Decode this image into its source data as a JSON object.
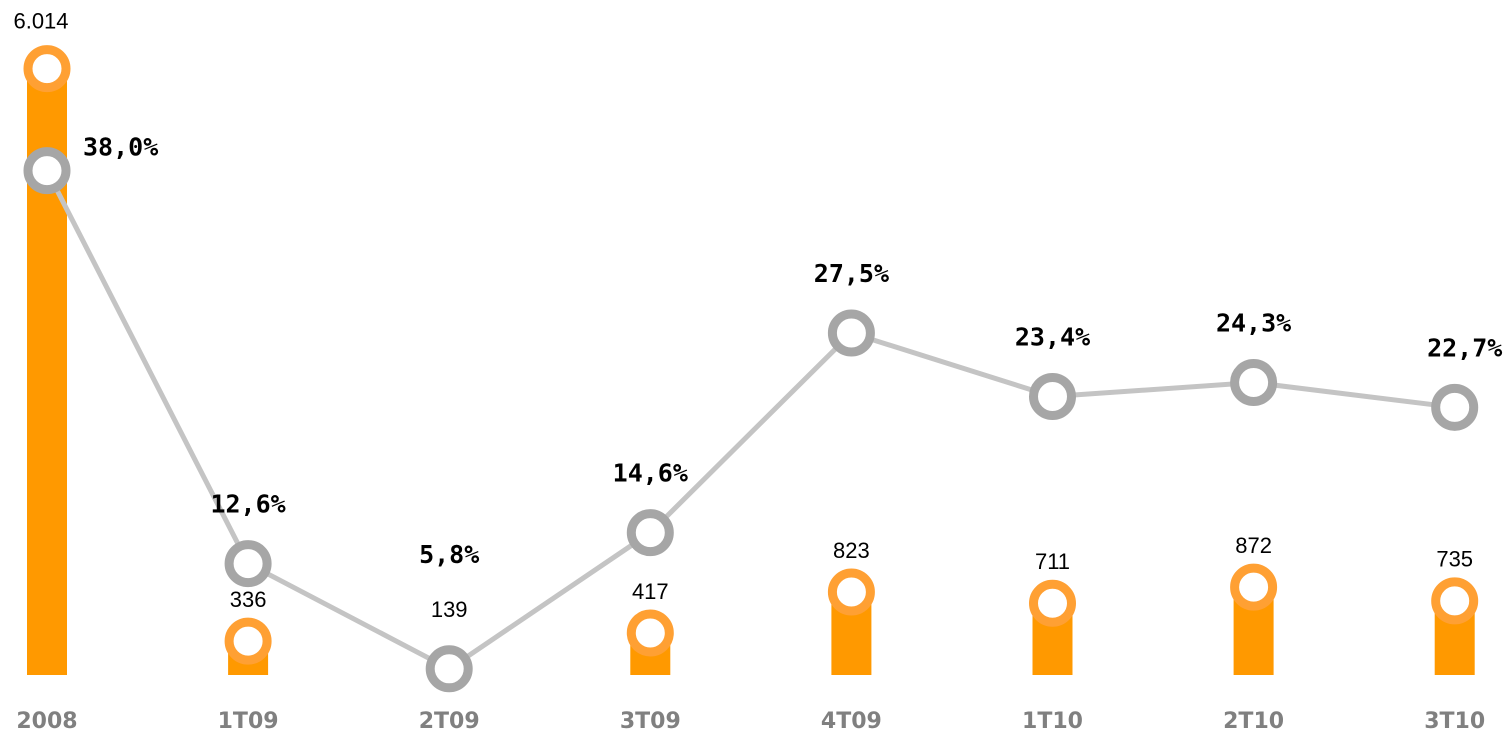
{
  "chart_data": {
    "type": "bar",
    "categories": [
      "2008",
      "1T09",
      "2T09",
      "3T09",
      "4T09",
      "1T10",
      "2T10",
      "3T10"
    ],
    "series": [
      {
        "type": "bar",
        "color": "#ff9900",
        "marker_color": "#ffa033",
        "values": [
          6014,
          336,
          139,
          417,
          823,
          711,
          872,
          735
        ],
        "value_labels": [
          "6.014",
          "336",
          "139",
          "417",
          "823",
          "711",
          "872",
          "735"
        ]
      },
      {
        "type": "line",
        "axis": "y2",
        "color": "#c4c4c4",
        "marker_color": "#a6a6a6",
        "values": [
          38.0,
          12.6,
          5.8,
          14.6,
          27.5,
          23.4,
          24.3,
          22.7
        ],
        "value_labels": [
          "38,0%",
          "12,6%",
          "5,8%",
          "14,6%",
          "27,5%",
          "23,4%",
          "24,3%",
          "22,7%"
        ]
      }
    ],
    "ylim": [
      0,
      6000
    ],
    "y2lim": [
      5.4,
      44.5
    ]
  }
}
